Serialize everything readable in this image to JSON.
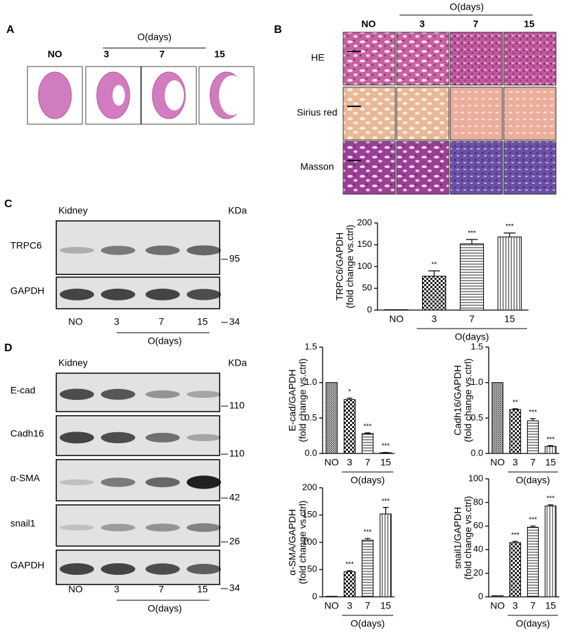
{
  "panel_a": {
    "label": "A",
    "conditions": [
      "NO",
      "3",
      "7",
      "15"
    ],
    "group_label": "O(days)"
  },
  "panel_b": {
    "label": "B",
    "conditions": [
      "NO",
      "3",
      "7",
      "15"
    ],
    "group_label": "O(days)",
    "rows": [
      "HE",
      "Sirius red",
      "Masson"
    ]
  },
  "panel_c": {
    "label": "C",
    "tissue": "Kidney",
    "unit": "KDa",
    "proteins": [
      "TRPC6",
      "GAPDH"
    ],
    "markers": [
      95,
      34
    ],
    "lanes": [
      "NO",
      "3",
      "7",
      "15"
    ],
    "group_label": "O(days)"
  },
  "panel_d": {
    "label": "D",
    "tissue": "Kidney",
    "unit": "KDa",
    "proteins": [
      "E-cad",
      "Cadh16",
      "α-SMA",
      "snail1",
      "GAPDH"
    ],
    "markers": [
      110,
      110,
      42,
      26,
      34
    ],
    "lanes": [
      "NO",
      "3",
      "7",
      "15"
    ],
    "group_label": "O(days)"
  },
  "chart_data": [
    {
      "type": "bar",
      "ylabel": [
        "TRPC6/GAPDH",
        "(fold change vs.ctrl)"
      ],
      "categories": [
        "NO",
        "3",
        "7",
        "15"
      ],
      "xgroup_label": "O(days)",
      "values": [
        1,
        78,
        152,
        168
      ],
      "errors": [
        0,
        12,
        10,
        9
      ],
      "annotations": [
        null,
        "**",
        "***",
        "***"
      ],
      "ylim": [
        0,
        200
      ],
      "yticks": [
        0,
        50,
        100,
        150,
        200
      ]
    },
    {
      "type": "bar",
      "ylabel": [
        "E-cad/GAPDH",
        "(fold change vs.ctrl)"
      ],
      "categories": [
        "NO",
        "3",
        "7",
        "15"
      ],
      "xgroup_label": "O(days)",
      "values": [
        1.0,
        0.76,
        0.28,
        0.01
      ],
      "errors": [
        0,
        0.02,
        0.01,
        0.005
      ],
      "annotations": [
        null,
        "*",
        "***",
        "***"
      ],
      "ylim": [
        0,
        1.5
      ],
      "yticks": [
        {
          "value": 0,
          "label": "0.0"
        },
        0.5,
        {
          "value": 1,
          "label": "1.0"
        },
        1.5
      ]
    },
    {
      "type": "bar",
      "ylabel": [
        "Cadh16/GAPDH",
        "(fold change vs.ctrl)"
      ],
      "categories": [
        "NO",
        "3",
        "7",
        "15"
      ],
      "xgroup_label": "O(days)",
      "values": [
        1.0,
        0.62,
        0.46,
        0.1
      ],
      "errors": [
        0,
        0.01,
        0.03,
        0.01
      ],
      "annotations": [
        null,
        "**",
        "***",
        "***"
      ],
      "ylim": [
        0,
        1.5
      ],
      "yticks": [
        {
          "value": 0,
          "label": "0.0"
        },
        0.5,
        {
          "value": 1,
          "label": "1.0"
        },
        1.5
      ]
    },
    {
      "type": "bar",
      "ylabel": [
        "α-SMA/GAPDH",
        "(fold change vs.ctrl)"
      ],
      "categories": [
        "NO",
        "3",
        "7",
        "15"
      ],
      "xgroup_label": "O(days)",
      "values": [
        1,
        46,
        104,
        152
      ],
      "errors": [
        0,
        2,
        3,
        12
      ],
      "annotations": [
        null,
        "***",
        "***",
        "***"
      ],
      "ylim": [
        0,
        200
      ],
      "yticks": [
        0,
        50,
        100,
        150,
        200
      ]
    },
    {
      "type": "bar",
      "ylabel": [
        "snail1/GAPDH",
        "(fold change vs.ctrl)"
      ],
      "categories": [
        "NO",
        "3",
        "7",
        "15"
      ],
      "xgroup_label": "O(days)",
      "values": [
        1,
        46,
        59,
        77
      ],
      "errors": [
        0,
        1,
        1,
        1
      ],
      "annotations": [
        null,
        "***",
        "***",
        "***"
      ],
      "ylim": [
        0,
        100
      ],
      "yticks": [
        0,
        20,
        40,
        60,
        80,
        100
      ]
    }
  ]
}
